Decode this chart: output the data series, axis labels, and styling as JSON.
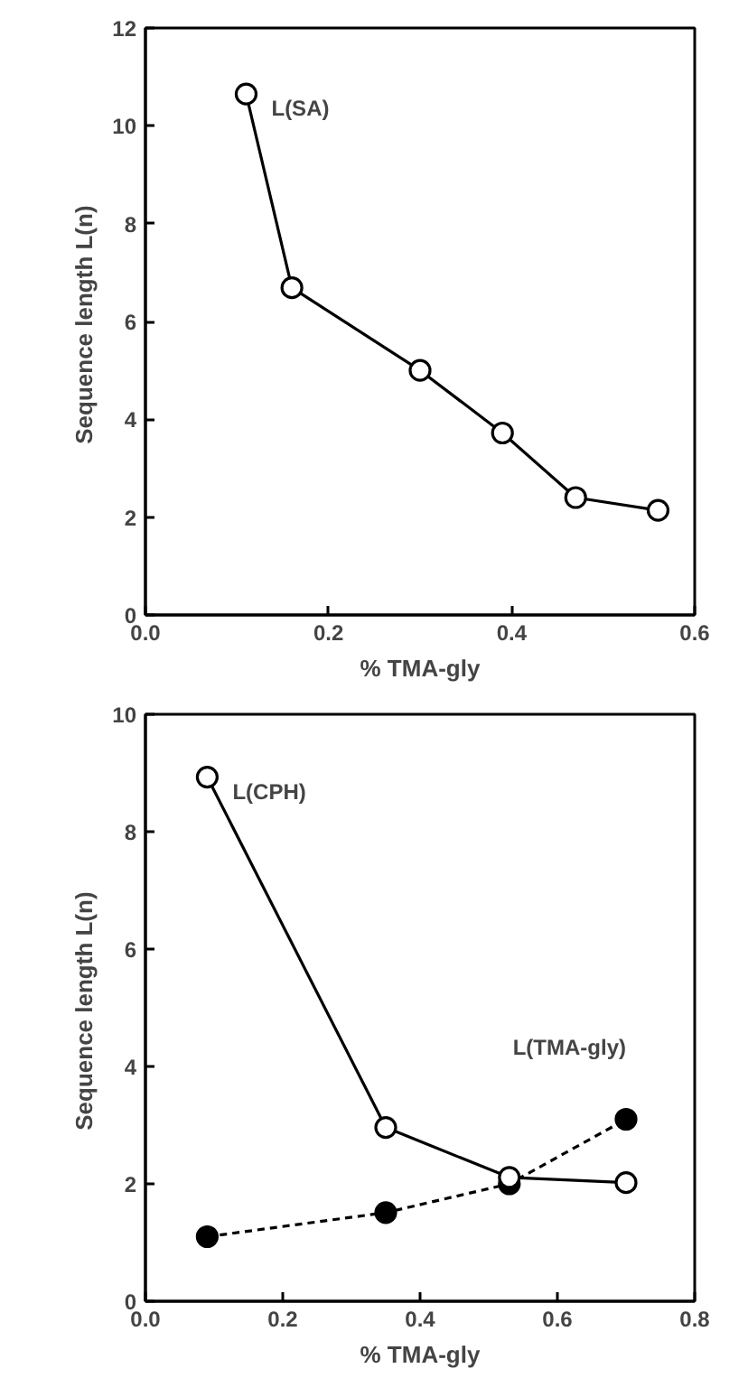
{
  "chart_data": [
    {
      "type": "line",
      "xlabel": "% TMA-gly",
      "ylabel": "Sequence length  L(n)",
      "xlim": [
        0,
        0.6
      ],
      "ylim": [
        0,
        12
      ],
      "xticks": [
        {
          "value": 0,
          "label": "0.0"
        },
        {
          "value": 0.2,
          "label": "0.2"
        },
        {
          "value": 0.4,
          "label": "0.4"
        },
        {
          "value": 0.6,
          "label": "0.6"
        }
      ],
      "yticks": [
        0,
        2,
        4,
        6,
        8,
        10,
        12
      ],
      "marker": "circle",
      "grid": false,
      "series": [
        {
          "name": "L(SA)",
          "color": "#000000",
          "x": [
            0.11,
            0.16,
            0.3,
            0.39,
            0.47,
            0.56
          ],
          "values": [
            10.65,
            6.69,
            5.0,
            3.72,
            2.4,
            2.14
          ]
        }
      ]
    },
    {
      "type": "line",
      "xlabel": "% TMA-gly",
      "ylabel": "Sequence length  L(n)",
      "xlim": [
        0,
        0.8
      ],
      "ylim": [
        0,
        10
      ],
      "xticks": [
        {
          "value": 0,
          "label": "0.0"
        },
        {
          "value": 0.2,
          "label": "0.2"
        },
        {
          "value": 0.4,
          "label": "0.4"
        },
        {
          "value": 0.6,
          "label": "0.6"
        },
        {
          "value": 0.8,
          "label": "0.8"
        }
      ],
      "yticks": [
        0,
        2,
        4,
        6,
        8,
        10
      ],
      "marker": "circle",
      "grid": false,
      "series": [
        {
          "name": "L(CPH)",
          "color": "#000000",
          "line_style": "solid",
          "x": [
            0.09,
            0.35,
            0.53,
            0.7
          ],
          "values": [
            8.93,
            2.96,
            2.11,
            2.02
          ]
        },
        {
          "name": "L(TMA-gly)",
          "color": "#000000",
          "line_style": "dashed",
          "x": [
            0.09,
            0.35,
            0.53,
            0.7
          ],
          "values": [
            1.1,
            1.51,
            2.0,
            3.1
          ]
        }
      ]
    }
  ]
}
